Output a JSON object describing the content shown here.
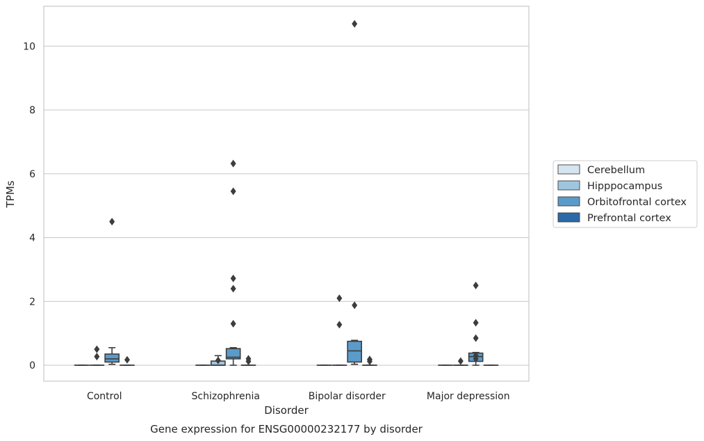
{
  "chart_data": {
    "type": "box",
    "title": "",
    "caption": "Gene expression for ENSG00000232177 by disorder",
    "xlabel": "Disorder",
    "ylabel": "TPMs",
    "ylim": [
      -0.5,
      11.25
    ],
    "yticks": [
      0,
      2,
      4,
      6,
      8,
      10
    ],
    "grid": "y",
    "legend_position": "right",
    "categories": [
      "Control",
      "Schizophrenia",
      "Bipolar disorder",
      "Major depression"
    ],
    "colors": {
      "Cerebellum": "#d6e4f0",
      "Hipppocampus": "#9ec6df",
      "Orbitofrontal cortex": "#5a9bc9",
      "Prefrontal cortex": "#2a6aa8"
    },
    "series": [
      {
        "name": "Cerebellum",
        "boxes": [
          {
            "q1": 0,
            "median": 0,
            "q3": 0,
            "whislo": 0,
            "whishi": 0,
            "fliers": []
          },
          {
            "q1": 0,
            "median": 0,
            "q3": 0,
            "whislo": 0,
            "whishi": 0,
            "fliers": []
          },
          {
            "q1": 0,
            "median": 0,
            "q3": 0,
            "whislo": 0,
            "whishi": 0,
            "fliers": []
          },
          {
            "q1": 0,
            "median": 0,
            "q3": 0,
            "whislo": 0,
            "whishi": 0,
            "fliers": []
          }
        ]
      },
      {
        "name": "Hipppocampus",
        "boxes": [
          {
            "q1": 0,
            "median": 0,
            "q3": 0,
            "whislo": 0,
            "whishi": 0,
            "fliers": [
              0.27,
              0.5
            ]
          },
          {
            "q1": 0,
            "median": 0,
            "q3": 0.13,
            "whislo": 0,
            "whishi": 0.3,
            "fliers": [
              0.15
            ]
          },
          {
            "q1": 0,
            "median": 0,
            "q3": 0,
            "whislo": 0,
            "whishi": 0,
            "fliers": [
              1.27,
              2.1
            ]
          },
          {
            "q1": 0,
            "median": 0,
            "q3": 0,
            "whislo": 0,
            "whishi": 0,
            "fliers": [
              0.13
            ]
          }
        ]
      },
      {
        "name": "Orbitofrontal cortex",
        "boxes": [
          {
            "q1": 0.1,
            "median": 0.2,
            "q3": 0.35,
            "whislo": 0.03,
            "whishi": 0.55,
            "fliers": [
              4.5
            ]
          },
          {
            "q1": 0.2,
            "median": 0.25,
            "q3": 0.52,
            "whislo": 0,
            "whishi": 0.55,
            "fliers": [
              1.3,
              2.4,
              2.72,
              5.45,
              6.32
            ]
          },
          {
            "q1": 0.1,
            "median": 0.45,
            "q3": 0.75,
            "whislo": 0.03,
            "whishi": 0.78,
            "fliers": [
              1.88,
              10.7
            ]
          },
          {
            "q1": 0.12,
            "median": 0.27,
            "q3": 0.38,
            "whislo": 0,
            "whishi": 0.4,
            "fliers": [
              0.85,
              1.33,
              2.5
            ]
          }
        ]
      },
      {
        "name": "Prefrontal cortex",
        "boxes": [
          {
            "q1": 0,
            "median": 0,
            "q3": 0,
            "whislo": 0,
            "whishi": 0,
            "fliers": [
              0.17
            ]
          },
          {
            "q1": 0,
            "median": 0,
            "q3": 0,
            "whislo": 0,
            "whishi": 0,
            "fliers": [
              0.12,
              0.2
            ]
          },
          {
            "q1": 0,
            "median": 0,
            "q3": 0,
            "whislo": 0,
            "whishi": 0,
            "fliers": [
              0.12,
              0.18
            ]
          },
          {
            "q1": 0,
            "median": 0,
            "q3": 0,
            "whislo": 0,
            "whishi": 0,
            "fliers": []
          }
        ]
      }
    ],
    "hippocampus_extra_fliers_major_depression": [
      0.2,
      0.3
    ]
  }
}
